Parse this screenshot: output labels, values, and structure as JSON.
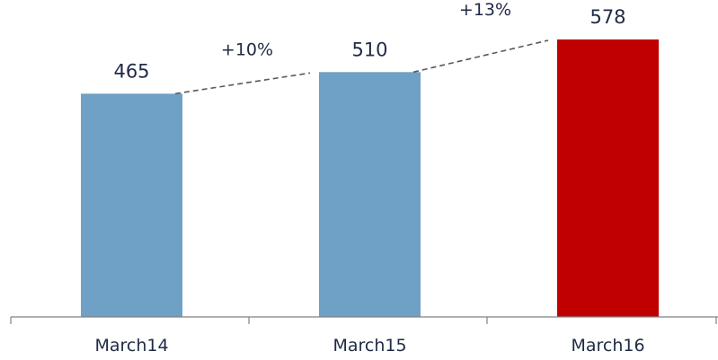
{
  "chart_data": {
    "type": "bar",
    "categories": [
      "March14",
      "March15",
      "March16"
    ],
    "values": [
      465,
      510,
      578
    ],
    "value_labels": [
      "465",
      "510",
      "578"
    ],
    "bar_colors": [
      "#6fa0c5",
      "#6fa0c5",
      "#c00000"
    ],
    "growth_labels": [
      "+10%",
      "+13%"
    ],
    "connector_color": "#595959",
    "axis_color": "#808080",
    "text_color": "#1f2a44",
    "grid": false,
    "title": "",
    "xlabel": "",
    "ylabel": ""
  }
}
